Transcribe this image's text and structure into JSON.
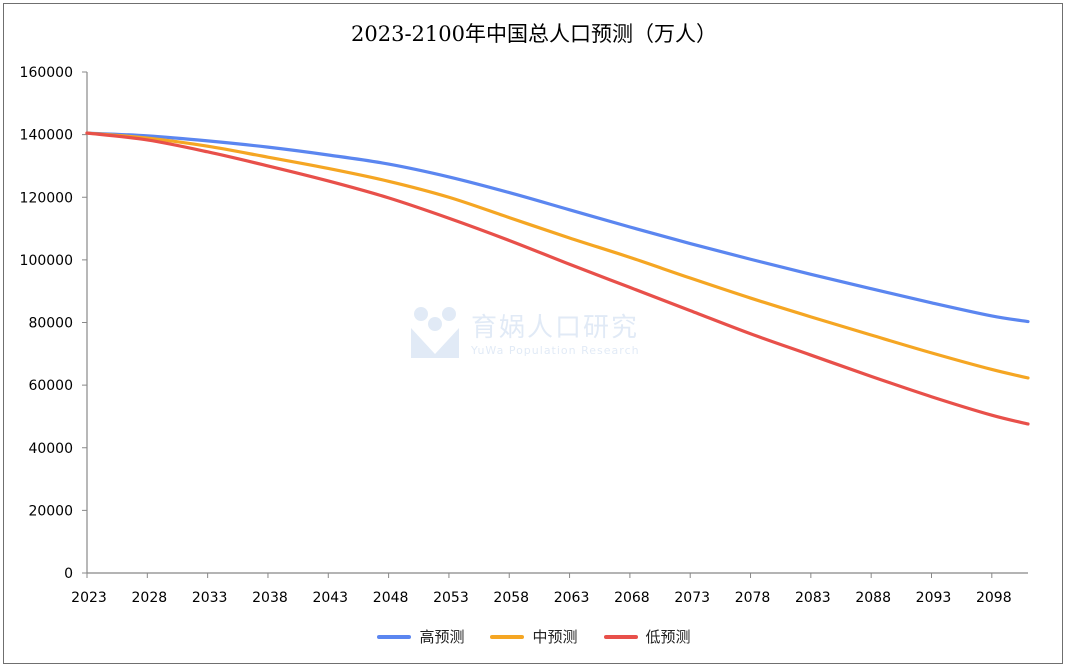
{
  "chart_data": {
    "type": "line",
    "title": "2023-2100年中国总人口预测（万人）",
    "xlabel": "",
    "ylabel": "",
    "x_ticks": [
      "2023",
      "2028",
      "2033",
      "2038",
      "2043",
      "2048",
      "2053",
      "2058",
      "2063",
      "2068",
      "2073",
      "2078",
      "2083",
      "2088",
      "2093",
      "2098"
    ],
    "y_ticks": [
      0,
      20000,
      40000,
      60000,
      80000,
      100000,
      120000,
      140000,
      160000
    ],
    "ylim": [
      0,
      160000
    ],
    "xlim": [
      2023,
      2101
    ],
    "grid": false,
    "legend_position": "bottom",
    "x": [
      2023,
      2028,
      2033,
      2038,
      2043,
      2048,
      2053,
      2058,
      2063,
      2068,
      2073,
      2078,
      2083,
      2088,
      2093,
      2098,
      2101
    ],
    "series": [
      {
        "name": "高预测",
        "color": "#5b86f0",
        "values": [
          140500,
          139600,
          138000,
          136000,
          133500,
          130600,
          126500,
          121500,
          116000,
          110500,
          105200,
          100200,
          95400,
          90800,
          86300,
          82100,
          80300
        ]
      },
      {
        "name": "中预测",
        "color": "#f5a623",
        "values": [
          140500,
          138900,
          136300,
          132800,
          129200,
          125100,
          120000,
          113500,
          107000,
          100800,
          94200,
          87800,
          81800,
          76000,
          70300,
          65000,
          62300
        ]
      },
      {
        "name": "低预测",
        "color": "#e8504a",
        "values": [
          140500,
          138300,
          134500,
          130000,
          125200,
          119800,
          113300,
          106200,
          98600,
          91200,
          83800,
          76400,
          69600,
          62800,
          56300,
          50400,
          47600
        ]
      }
    ]
  },
  "watermark": {
    "main": "育娲人口研究",
    "sub": "YuWa Population Research"
  }
}
